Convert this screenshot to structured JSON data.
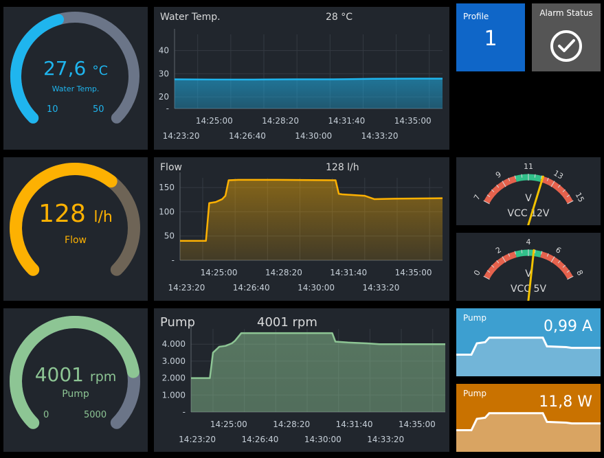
{
  "gauges": {
    "water": {
      "value": "27,6",
      "unit": "°C",
      "label": "Water Temp.",
      "min": "10",
      "max": "50",
      "fraction": 0.44,
      "color": "#1fb5ee"
    },
    "flow": {
      "value": "128",
      "unit": "l/h",
      "label": "Flow",
      "fraction": 0.64,
      "color": "#fdb102"
    },
    "pump": {
      "value": "4001",
      "unit": "rpm",
      "label": "Pump",
      "min": "0",
      "max": "5000",
      "fraction": 0.8,
      "color": "#8dc594"
    }
  },
  "charts": {
    "water": {
      "title": "Water Temp.",
      "current": "28 °C"
    },
    "flow": {
      "title": "Flow",
      "current": "128 l/h"
    },
    "pump": {
      "title": "Pump",
      "current": "4001 rpm"
    }
  },
  "tiles": {
    "profile": {
      "title": "Profile",
      "value": "1",
      "color": "#0f66c8"
    },
    "alarm": {
      "title": "Alarm Status",
      "color": "#555555"
    },
    "pump_current": {
      "title": "Pump",
      "value": "0,99 A",
      "color": "#3d9fd0"
    },
    "pump_power": {
      "title": "Pump",
      "value": "11,8 W",
      "color": "#c97200"
    }
  },
  "meters": {
    "vcc12": {
      "label": "VCC 12V",
      "unit": "V",
      "ticks": [
        "7",
        "9",
        "11",
        "13",
        "15"
      ],
      "min": 7,
      "max": 15,
      "value": 12.1
    },
    "vcc5": {
      "label": "VCC 5V",
      "unit": "V",
      "ticks": [
        "0",
        "2",
        "4",
        "6",
        "8"
      ],
      "min": 0,
      "max": 8,
      "value": 4.4
    }
  },
  "chart_data": [
    {
      "type": "area",
      "title": "Water Temp.",
      "x": [
        "14:23:00",
        "14:25:00",
        "14:27:00",
        "14:29:00",
        "14:31:00",
        "14:33:00",
        "14:35:00",
        "14:36:30"
      ],
      "values": [
        27.6,
        27.5,
        27.5,
        27.6,
        27.6,
        27.8,
        27.9,
        27.9
      ],
      "yticks": [
        "40",
        "30",
        "20",
        "-"
      ],
      "ylim": [
        15,
        47
      ],
      "xticks_upper": [
        "14:25:00",
        "14:28:20",
        "14:31:40",
        "14:35:00"
      ],
      "xticks_lower": [
        "14:23:20",
        "14:26:40",
        "14:30:00",
        "14:33:20"
      ],
      "color": "#1fb5ee"
    },
    {
      "type": "area",
      "title": "Flow",
      "x": [
        "14:23:00",
        "14:24:20",
        "14:24:30",
        "14:24:50",
        "14:25:10",
        "14:25:20",
        "14:25:30",
        "14:26:00",
        "14:28:00",
        "14:31:00",
        "14:31:10",
        "14:31:20",
        "14:32:30",
        "14:33:00",
        "14:34:00",
        "14:36:30"
      ],
      "values": [
        40,
        40,
        118,
        120,
        126,
        133,
        165,
        166,
        166,
        165,
        137,
        136,
        133,
        126,
        127,
        128
      ],
      "yticks": [
        "150",
        "100",
        "50",
        "-"
      ],
      "ylim": [
        0,
        170
      ],
      "xticks_upper": [
        "14:25:00",
        "14:28:20",
        "14:31:40",
        "14:35:00"
      ],
      "xticks_lower": [
        "14:23:20",
        "14:26:40",
        "14:30:00",
        "14:33:20"
      ],
      "color": "#fdb102"
    },
    {
      "type": "area",
      "title": "Pump",
      "x": [
        "14:23:00",
        "14:24:00",
        "14:24:10",
        "14:24:30",
        "14:24:50",
        "14:25:10",
        "14:25:20",
        "14:25:40",
        "14:26:00",
        "14:28:00",
        "14:30:30",
        "14:30:40",
        "14:31:20",
        "14:32:20",
        "14:33:00",
        "14:36:30"
      ],
      "values": [
        2000,
        2000,
        3500,
        3850,
        3900,
        4050,
        4200,
        4650,
        4650,
        4650,
        4650,
        4150,
        4100,
        4050,
        4000,
        4000
      ],
      "yticks": [
        "4.000",
        "3.000",
        "2.000",
        "1.000",
        "-"
      ],
      "ylim": [
        0,
        4900
      ],
      "xticks_upper": [
        "14:25:00",
        "14:28:20",
        "14:31:40",
        "14:35:00"
      ],
      "xticks_lower": [
        "14:23:20",
        "14:26:40",
        "14:30:00",
        "14:33:20"
      ],
      "color": "#8dc594"
    }
  ],
  "sparklines": {
    "pump_current": [
      0.5,
      0.5,
      0.8,
      0.83,
      0.95,
      0.95,
      0.95,
      0.72,
      0.7,
      0.68,
      0.68
    ],
    "pump_power": [
      0.5,
      0.5,
      0.8,
      0.83,
      0.95,
      0.95,
      0.95,
      0.72,
      0.7,
      0.68,
      0.68
    ]
  }
}
